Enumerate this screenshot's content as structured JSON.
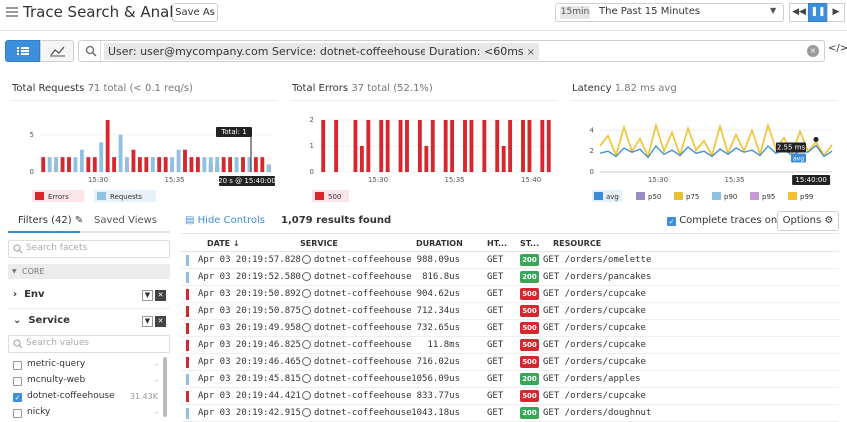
{
  "header": {
    "title": "Trace Search & Analytics",
    "save_as": "Save As",
    "time_badge": "15min",
    "time_range": "The Past 15 Minutes"
  },
  "search": {
    "filters": [
      {
        "label": "User: user@mycompany.com",
        "remove": "×"
      },
      {
        "label": "Service: dotnet-coffeehouse",
        "remove": "×"
      },
      {
        "label": "Duration: <60ms",
        "remove": "×"
      }
    ],
    "clear": "×",
    "code_icon": "</>"
  },
  "panels": {
    "requests": {
      "title": "Total Requests",
      "subtitle": "71 total (< 0.1 req/s)"
    },
    "errors": {
      "title": "Total Errors",
      "subtitle": "37 total (52.1%)"
    },
    "latency": {
      "title": "Latency",
      "subtitle": "1.82 ms avg"
    }
  },
  "colors": {
    "accent": "#3d8fdc",
    "error": "#d6272e",
    "request": "#8fc2e2",
    "ok": "#3aa757",
    "avg": "#3c8dd1",
    "p50": "#9a8bc4",
    "p75": "#e8c030",
    "p90": "#8fc2e2",
    "p95": "#c89ad6",
    "p99": "#f2c12e"
  },
  "chart_data": [
    {
      "type": "bar",
      "title": "Total Requests",
      "ylim": [
        0,
        7
      ],
      "yticks": [
        0,
        5
      ],
      "xticks": [
        "15:30",
        "15:35",
        "15:40"
      ],
      "legend": [
        "Errors",
        "Requests"
      ],
      "tooltip": {
        "label": "Total: 1",
        "time": "20 s @ 15:40:00"
      },
      "series": [
        {
          "name": "Errors",
          "values": [
            2,
            0,
            1,
            2,
            2,
            0,
            0,
            2,
            2,
            0,
            7,
            2,
            0,
            1,
            3,
            2,
            2,
            0,
            2,
            2,
            1,
            0,
            3,
            2,
            2,
            0,
            1,
            1,
            2,
            2,
            0,
            2,
            1,
            2,
            2,
            1
          ]
        },
        {
          "name": "Requests",
          "values": [
            0,
            2,
            2,
            0,
            0,
            2,
            3,
            0,
            0,
            4,
            0,
            0,
            5,
            2,
            0,
            0,
            0,
            2,
            0,
            0,
            2,
            3,
            0,
            0,
            0,
            2,
            2,
            2,
            0,
            0,
            2,
            0,
            2,
            0,
            0,
            1
          ]
        }
      ]
    },
    {
      "type": "bar",
      "title": "Total Errors",
      "ylim": [
        0,
        2
      ],
      "yticks": [
        0,
        1,
        2
      ],
      "xticks": [
        "15:30",
        "15:35",
        "15:40"
      ],
      "legend": [
        "500"
      ],
      "series": [
        {
          "name": "500",
          "values": [
            2,
            0,
            2,
            0,
            0,
            2,
            1,
            2,
            0,
            2,
            2,
            0,
            2,
            2,
            0,
            2,
            1,
            2,
            0,
            2,
            2,
            0,
            2,
            2,
            0,
            2,
            0,
            2,
            1,
            2,
            0,
            2,
            2,
            0,
            2,
            2
          ]
        }
      ]
    },
    {
      "type": "line",
      "title": "Latency",
      "ylim": [
        0,
        5
      ],
      "yticks": [
        0,
        2,
        4
      ],
      "xticks": [
        "15:30",
        "15:35",
        "15:40:00"
      ],
      "legend": [
        "avg",
        "p50",
        "p75",
        "p90",
        "p95",
        "p99"
      ],
      "tooltip": {
        "value": "2.55 ms",
        "series": "avg"
      },
      "series": [
        {
          "name": "avg",
          "values": [
            1.8,
            2.0,
            1.5,
            2.3,
            1.9,
            2.2,
            1.4,
            2.5,
            1.7,
            2.1,
            1.6,
            2.4,
            1.8,
            2.0,
            1.5,
            2.2,
            1.7,
            2.3,
            1.9,
            2.1,
            1.6,
            2.5,
            1.8,
            2.2,
            1.6,
            2.0,
            1.9,
            2.55,
            1.5,
            2.0
          ]
        },
        {
          "name": "p99",
          "values": [
            2.5,
            3.5,
            1.6,
            4.3,
            2.0,
            3.2,
            1.5,
            4.5,
            2.0,
            3.8,
            1.6,
            4.2,
            2.1,
            3.0,
            1.6,
            4.4,
            1.8,
            3.6,
            2.0,
            4.0,
            1.7,
            4.5,
            2.2,
            3.3,
            1.7,
            3.9,
            2.0,
            2.9,
            1.6,
            2.6
          ]
        }
      ]
    }
  ],
  "filters_panel": {
    "tab_filters": "Filters (42)",
    "tab_saved": "Saved Views",
    "search_placeholder": "Search facets",
    "core_label": "CORE",
    "facet_env": "Env",
    "facet_service": "Service",
    "values_placeholder": "Search values",
    "values": [
      {
        "name": "metric-query",
        "count": "-",
        "checked": false
      },
      {
        "name": "mcnulty-web",
        "count": "-",
        "checked": false
      },
      {
        "name": "dotnet-coffeehouse",
        "count": "31.43K",
        "checked": true
      },
      {
        "name": "nicky",
        "count": "-",
        "checked": false
      }
    ]
  },
  "results": {
    "hide_controls": "Hide Controls",
    "count": "1,079 results found",
    "complete_traces": "Complete traces only",
    "options": "Options",
    "columns": [
      "DATE ↓",
      "SERVICE",
      "DURATION",
      "HT...",
      "ST...",
      "RESOURCE"
    ],
    "rows": [
      {
        "date": "Apr 03 20:19:57.828",
        "service": "dotnet-coffeehouse",
        "duration": "988.09us",
        "method": "GET",
        "status": "200",
        "resource": "GET /orders/omelette"
      },
      {
        "date": "Apr 03 20:19:52.580",
        "service": "dotnet-coffeehouse",
        "duration": "816.8us",
        "method": "GET",
        "status": "200",
        "resource": "GET /orders/pancakes"
      },
      {
        "date": "Apr 03 20:19:50.892",
        "service": "dotnet-coffeehouse",
        "duration": "904.62us",
        "method": "GET",
        "status": "500",
        "resource": "GET /orders/cupcake"
      },
      {
        "date": "Apr 03 20:19:50.875",
        "service": "dotnet-coffeehouse",
        "duration": "712.34us",
        "method": "GET",
        "status": "500",
        "resource": "GET /orders/cupcake"
      },
      {
        "date": "Apr 03 20:19:49.958",
        "service": "dotnet-coffeehouse",
        "duration": "732.65us",
        "method": "GET",
        "status": "500",
        "resource": "GET /orders/cupcake"
      },
      {
        "date": "Apr 03 20:19:46.825",
        "service": "dotnet-coffeehouse",
        "duration": "11.8ms",
        "method": "GET",
        "status": "500",
        "resource": "GET /orders/cupcake"
      },
      {
        "date": "Apr 03 20:19:46.465",
        "service": "dotnet-coffeehouse",
        "duration": "716.02us",
        "method": "GET",
        "status": "500",
        "resource": "GET /orders/cupcake"
      },
      {
        "date": "Apr 03 20:19:45.815",
        "service": "dotnet-coffeehouse",
        "duration": "1056.09us",
        "method": "GET",
        "status": "200",
        "resource": "GET /orders/apples"
      },
      {
        "date": "Apr 03 20:19:44.421",
        "service": "dotnet-coffeehouse",
        "duration": "833.77us",
        "method": "GET",
        "status": "500",
        "resource": "GET /orders/cupcake"
      },
      {
        "date": "Apr 03 20:19:42.915",
        "service": "dotnet-coffeehouse",
        "duration": "1043.18us",
        "method": "GET",
        "status": "200",
        "resource": "GET /orders/doughnut"
      }
    ]
  }
}
